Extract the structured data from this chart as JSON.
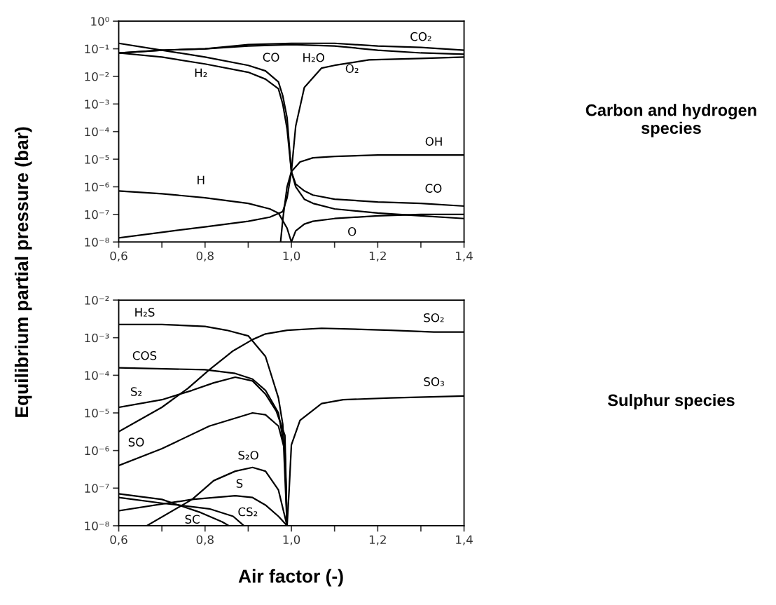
{
  "chart_data": [
    {
      "type": "line",
      "ylabel": "Equilibrium partial pressure (bar)",
      "color": "#000000",
      "log": "y",
      "grid": false,
      "marker": "none",
      "line_style": "solid",
      "xlim": [
        0.6,
        1.4
      ],
      "xticks": [
        {
          "value": 0.6,
          "label": "0,6"
        },
        {
          "value": 0.7,
          "label": null
        },
        {
          "value": 0.8,
          "label": "0,8"
        },
        {
          "value": 0.9,
          "label": null
        },
        {
          "value": 1.0,
          "label": "1,0"
        },
        {
          "value": 1.1,
          "label": null
        },
        {
          "value": 1.2,
          "label": "1,2"
        },
        {
          "value": 1.3,
          "label": null
        },
        {
          "value": 1.4,
          "label": "1,4"
        }
      ],
      "ylim": [
        1e-08,
        1
      ],
      "yticks": [
        {
          "value": 1,
          "label": "10⁰"
        },
        {
          "value": 0.1,
          "label": "10⁻¹"
        },
        {
          "value": 0.01,
          "label": "10⁻²"
        },
        {
          "value": 0.001,
          "label": "10⁻³"
        },
        {
          "value": 0.0001,
          "label": "10⁻⁴"
        },
        {
          "value": 1e-05,
          "label": "10⁻⁵"
        },
        {
          "value": 1e-06,
          "label": "10⁻⁶"
        },
        {
          "value": 1e-07,
          "label": "10⁻⁷"
        },
        {
          "value": 1e-08,
          "label": "10⁻⁸"
        }
      ],
      "series": [
        {
          "x": [
            0.6,
            0.7,
            0.8,
            0.9,
            1.0,
            1.1,
            1.2,
            1.3,
            1.4
          ],
          "values": [
            0.0708,
            0.0891,
            0.1,
            0.141,
            0.158,
            0.158,
            0.126,
            0.112,
            0.0891
          ]
        },
        {
          "x": [
            0.6,
            0.7,
            0.8,
            0.9,
            1.0,
            1.1,
            1.2,
            1.3,
            1.4
          ],
          "values": [
            0.0708,
            0.0891,
            0.1,
            0.126,
            0.141,
            0.126,
            0.0891,
            0.0708,
            0.0631
          ]
        },
        {
          "x": [
            0.6,
            0.7,
            0.8,
            0.9,
            0.94,
            0.97,
            0.98,
            0.99,
            1.0,
            1.01,
            1.03,
            1.05,
            1.1,
            1.2,
            1.3,
            1.4
          ],
          "values": [
            0.158,
            0.0891,
            0.0501,
            0.0251,
            0.0158,
            0.00631,
            0.002,
            0.000316,
            3.55e-06,
            1.26e-06,
            7.08e-07,
            5.01e-07,
            3.55e-07,
            2.82e-07,
            2.51e-07,
            2e-07
          ]
        },
        {
          "x": [
            0.6,
            0.7,
            0.8,
            0.9,
            0.94,
            0.97,
            0.98,
            0.99,
            1.0,
            1.01,
            1.03,
            1.05,
            1.1,
            1.2,
            1.3,
            1.4
          ],
          "values": [
            0.0708,
            0.0501,
            0.0282,
            0.0141,
            0.00794,
            0.00355,
            0.001,
            0.000126,
            3.55e-06,
            1e-06,
            3.55e-07,
            2.51e-07,
            1.58e-07,
            1.12e-07,
            8.91e-08,
            7.08e-08
          ]
        },
        {
          "x": [
            0.975,
            0.98,
            0.99,
            1.0,
            1.01,
            1.03,
            1.07,
            1.1,
            1.18,
            1.3,
            1.4
          ],
          "values": [
            1e-08,
            6.31e-08,
            1e-06,
            3.55e-06,
            0.000158,
            0.00398,
            0.02,
            0.0251,
            0.0398,
            0.0447,
            0.0501
          ]
        },
        {
          "x": [
            0.6,
            0.7,
            0.8,
            0.9,
            0.95,
            0.98,
            0.99,
            1.0,
            1.02,
            1.05,
            1.1,
            1.2,
            1.4
          ],
          "values": [
            1.41e-08,
            2.24e-08,
            3.55e-08,
            5.62e-08,
            7.94e-08,
            1.26e-07,
            3.98e-07,
            3.55e-06,
            7.94e-06,
            1.12e-05,
            1.26e-05,
            1.41e-05,
            1.41e-05
          ]
        },
        {
          "x": [
            0.6,
            0.7,
            0.8,
            0.9,
            0.95,
            0.97,
            0.99,
            1.0
          ],
          "values": [
            7.08e-07,
            5.62e-07,
            3.98e-07,
            2.51e-07,
            1.58e-07,
            1.12e-07,
            3.16e-08,
            1e-08
          ]
        },
        {
          "x": [
            1.0,
            1.01,
            1.03,
            1.05,
            1.1,
            1.2,
            1.3,
            1.4
          ],
          "values": [
            1e-08,
            2.51e-08,
            4.47e-08,
            5.62e-08,
            7.08e-08,
            8.91e-08,
            1e-07,
            1e-07
          ]
        }
      ],
      "annotations": [
        {
          "text": "CO₂",
          "x": 1.3,
          "y": 0.112
        },
        {
          "text": "CO",
          "x": 0.94,
          "y": 0.0158
        },
        {
          "text": "H₂O",
          "x": 1.1,
          "y": 0.126
        },
        {
          "text": "H₂",
          "x": 0.8,
          "y": 0.0282
        },
        {
          "text": "O₂",
          "x": 1.1,
          "y": 0.0251
        },
        {
          "text": "OH",
          "x": 1.4,
          "y": 1.41e-05
        },
        {
          "text": "H",
          "x": 0.8,
          "y": 3.98e-07
        },
        {
          "text": "CO",
          "x": 1.3,
          "y": 2.51e-07
        },
        {
          "text": "O",
          "x": 1.1,
          "y": 7.08e-08
        },
        "Carbon and hydrogen species"
      ]
    },
    {
      "type": "line",
      "xlabel": "Air factor (-)",
      "color": "#000000",
      "log": "y",
      "grid": false,
      "marker": "none",
      "line_style": "solid",
      "xlim": [
        0.6,
        1.4
      ],
      "xticks": [
        {
          "value": 0.6,
          "label": "0,6"
        },
        {
          "value": 0.7,
          "label": null
        },
        {
          "value": 0.8,
          "label": "0,8"
        },
        {
          "value": 0.9,
          "label": null
        },
        {
          "value": 1.0,
          "label": "1,0"
        },
        {
          "value": 1.1,
          "label": null
        },
        {
          "value": 1.2,
          "label": "1,2"
        },
        {
          "value": 1.3,
          "label": null
        },
        {
          "value": 1.4,
          "label": "1,4"
        }
      ],
      "ylim": [
        1e-08,
        0.01
      ],
      "yticks": [
        {
          "value": 0.01,
          "label": "10⁻²"
        },
        {
          "value": 0.001,
          "label": "10⁻³"
        },
        {
          "value": 0.0001,
          "label": "10⁻⁴"
        },
        {
          "value": 1e-05,
          "label": "10⁻⁵"
        },
        {
          "value": 1e-06,
          "label": "10⁻⁶"
        },
        {
          "value": 1e-07,
          "label": "10⁻⁷"
        },
        {
          "value": 1e-08,
          "label": "10⁻⁸"
        }
      ],
      "series": [
        {
          "x": [
            0.6,
            0.7,
            0.8,
            0.85,
            0.9,
            0.94,
            0.97,
            0.98,
            0.99
          ],
          "values": [
            0.00224,
            0.00224,
            0.002,
            0.00158,
            0.00112,
            0.000316,
            2.51e-05,
            5.01e-06,
            1e-08
          ]
        },
        {
          "x": [
            0.6,
            0.7,
            0.76,
            0.81,
            0.865,
            0.91,
            0.94,
            0.99,
            1.07,
            1.23,
            1.33,
            1.4
          ],
          "values": [
            3.16e-06,
            1.41e-05,
            4.47e-05,
            0.000141,
            0.000447,
            0.000891,
            0.00126,
            0.00158,
            0.00178,
            0.00158,
            0.00141,
            0.00141
          ]
        },
        {
          "x": [
            0.6,
            0.8,
            0.87,
            0.91,
            0.94,
            0.97,
            0.985,
            0.99
          ],
          "values": [
            0.000158,
            0.000141,
            0.000112,
            7.94e-05,
            3.98e-05,
            1e-05,
            1e-06,
            1e-08
          ]
        },
        {
          "x": [
            0.6,
            0.7,
            0.77,
            0.82,
            0.87,
            0.91,
            0.94,
            0.965,
            0.985,
            0.99
          ],
          "values": [
            1.41e-05,
            2.24e-05,
            3.98e-05,
            6.31e-05,
            8.91e-05,
            7.08e-05,
            3.16e-05,
            1.12e-05,
            2.51e-06,
            1e-08
          ]
        },
        {
          "x": [
            0.6,
            0.7,
            0.81,
            0.91,
            0.94,
            0.97,
            0.985,
            0.99
          ],
          "values": [
            3.98e-07,
            1.12e-06,
            4.47e-06,
            1e-05,
            8.91e-06,
            4.47e-06,
            1e-06,
            1e-08
          ]
        },
        {
          "x": [
            0.665,
            0.77,
            0.82,
            0.87,
            0.91,
            0.94,
            0.97,
            0.99
          ],
          "values": [
            1e-08,
            5.01e-08,
            1.58e-07,
            2.82e-07,
            3.55e-07,
            2.82e-07,
            8.91e-08,
            1e-08
          ]
        },
        {
          "x": [
            0.6,
            0.77,
            0.87,
            0.91,
            0.94,
            0.97,
            0.99
          ],
          "values": [
            2.51e-08,
            5.01e-08,
            6.31e-08,
            5.62e-08,
            3.55e-08,
            1.78e-08,
            1e-08
          ]
        },
        {
          "x": [
            0.6,
            0.7,
            0.81,
            0.865,
            0.89
          ],
          "values": [
            5.62e-08,
            3.98e-08,
            2.82e-08,
            1.78e-08,
            1e-08
          ]
        },
        {
          "x": [
            0.6,
            0.7,
            0.79,
            0.84,
            0.855
          ],
          "values": [
            7.08e-08,
            5.01e-08,
            2.24e-08,
            1.26e-08,
            1e-08
          ]
        },
        {
          "x": [
            0.99,
            0.995,
            1.0,
            1.02,
            1.07,
            1.12,
            1.23,
            1.4
          ],
          "values": [
            1e-08,
            1e-07,
            1.41e-06,
            6.31e-06,
            1.78e-05,
            2.24e-05,
            2.51e-05,
            2.82e-05
          ]
        }
      ],
      "annotations": [
        {
          "text": "H₂S",
          "x": 0.6,
          "y": 0.00224
        },
        {
          "text": "COS",
          "x": 0.6,
          "y": 0.000158
        },
        {
          "text": "S₂",
          "x": 0.6,
          "y": 1.41e-05
        },
        {
          "text": "SO",
          "x": 0.6,
          "y": 3.98e-07
        },
        {
          "text": "S₂O",
          "x": 0.91,
          "y": 3.55e-07
        },
        {
          "text": "S",
          "x": 0.87,
          "y": 6.31e-08
        },
        {
          "text": "CS₂",
          "x": 0.865,
          "y": 1.78e-08
        },
        {
          "text": "SC",
          "x": 0.79,
          "y": 2.24e-08
        },
        {
          "text": "SO₂",
          "x": 1.33,
          "y": 0.00141
        },
        {
          "text": "SO₃",
          "x": 1.4,
          "y": 2.82e-05
        },
        "Sulphur species"
      ]
    }
  ]
}
